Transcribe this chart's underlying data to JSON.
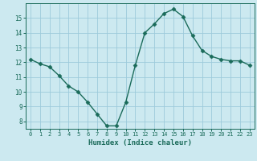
{
  "x": [
    0,
    1,
    2,
    3,
    4,
    5,
    6,
    7,
    8,
    9,
    10,
    11,
    12,
    13,
    14,
    15,
    16,
    17,
    18,
    19,
    20,
    21,
    22,
    23
  ],
  "y": [
    12.2,
    11.9,
    11.7,
    11.1,
    10.4,
    10.0,
    9.3,
    8.5,
    7.7,
    7.7,
    9.3,
    11.8,
    14.0,
    14.6,
    15.3,
    15.6,
    15.1,
    13.8,
    12.8,
    12.4,
    12.2,
    12.1,
    12.1,
    11.8
  ],
  "xlabel": "Humidex (Indice chaleur)",
  "bg_color": "#cce9f0",
  "grid_color": "#9dcadb",
  "line_color": "#1a6b5a",
  "marker_size": 2.5,
  "ylim": [
    7.5,
    16.0
  ],
  "xlim": [
    -0.5,
    23.5
  ],
  "yticks": [
    8,
    9,
    10,
    11,
    12,
    13,
    14,
    15
  ],
  "xticks": [
    0,
    1,
    2,
    3,
    4,
    5,
    6,
    7,
    8,
    9,
    10,
    11,
    12,
    13,
    14,
    15,
    16,
    17,
    18,
    19,
    20,
    21,
    22,
    23
  ],
  "xtick_labels": [
    "0",
    "1",
    "2",
    "3",
    "4",
    "5",
    "6",
    "7",
    "8",
    "9",
    "10",
    "11",
    "12",
    "13",
    "14",
    "15",
    "16",
    "17",
    "18",
    "19",
    "20",
    "21",
    "22",
    "23"
  ]
}
